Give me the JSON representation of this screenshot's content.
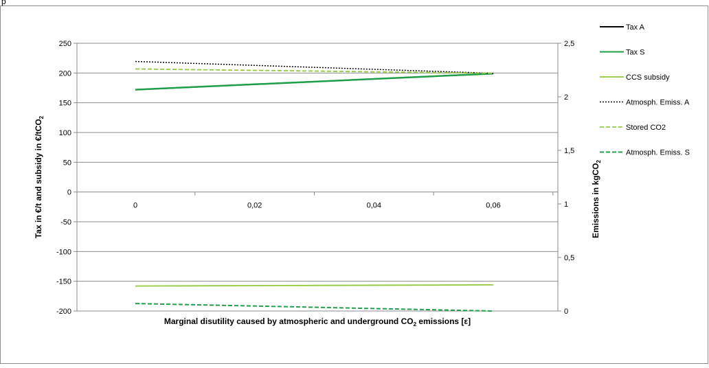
{
  "header_fragment": "p",
  "chart_data": {
    "type": "line",
    "title": "",
    "xlabel_main": "Marginal disutility caused by atmospheric and underground CO",
    "xlabel_sub": "2",
    "xlabel_tail": " emissions [ε]",
    "ylabel_main": "Tax in €/t and subsidy in €/tCO",
    "ylabel_sub": "2",
    "y2label_main": "Emissions in kgCO",
    "y2label_sub": "2",
    "x": [
      0,
      0.06
    ],
    "x_tick_values": [
      0,
      0.02,
      0.04,
      0.06
    ],
    "x_tick_labels": [
      "0",
      "0,02",
      "0,04",
      "0,06"
    ],
    "ylim": [
      -200,
      250
    ],
    "y_ticks": [
      250,
      200,
      150,
      100,
      50,
      0,
      -50,
      -100,
      -150,
      -200
    ],
    "y_tick_labels": [
      "250",
      "200",
      "150",
      "100",
      "50",
      "0",
      "-50",
      "-100",
      "-150",
      "-200"
    ],
    "y2lim": [
      0,
      2.5
    ],
    "y2_ticks": [
      2.5,
      2,
      1.5,
      1,
      0.5,
      0
    ],
    "y2_tick_labels": [
      "2,5",
      "2",
      "1,5",
      "1",
      "0,5",
      "0"
    ],
    "grid": "horizontal",
    "legend_position": "right",
    "series": [
      {
        "name": "Tax A",
        "axis": "left",
        "values": [
          172,
          199
        ],
        "color": "#000000",
        "style": "solid",
        "width": 2
      },
      {
        "name": "Tax S",
        "axis": "left",
        "values": [
          172,
          199
        ],
        "color": "#1f9f4a",
        "style": "solid",
        "width": 2.5
      },
      {
        "name": "CCS subsidy",
        "axis": "left",
        "values": [
          -158,
          -156
        ],
        "color": "#92c83e",
        "style": "solid",
        "width": 1.8
      },
      {
        "name": "Atmosph. Emiss. A",
        "axis": "right",
        "values": [
          2.33,
          2.22
        ],
        "color": "#000000",
        "style": "dotted",
        "width": 1.5
      },
      {
        "name": "Stored CO2",
        "axis": "right",
        "values": [
          2.26,
          2.22
        ],
        "color": "#92c83e",
        "style": "dashed",
        "width": 1.8
      },
      {
        "name": "Atmosph. Emiss. S",
        "axis": "right",
        "values": [
          0.07,
          0.0
        ],
        "color": "#1f9f4a",
        "style": "dashed",
        "width": 2
      }
    ]
  }
}
